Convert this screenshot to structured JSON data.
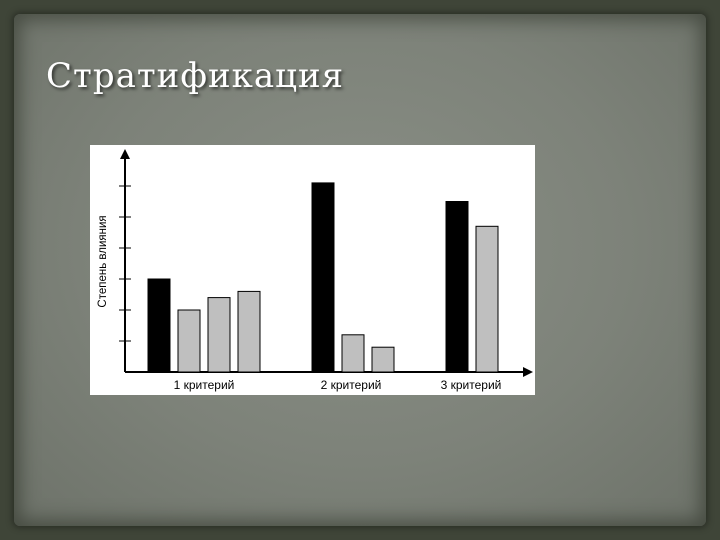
{
  "slide": {
    "title": "Стратификация"
  },
  "chart_data": {
    "type": "bar",
    "ylabel": "Степень влияния",
    "xlabel": "",
    "ylim": [
      0,
      7
    ],
    "yticks": [
      1,
      2,
      3,
      4,
      5,
      6
    ],
    "groups": [
      {
        "label": "1 критерий",
        "values": [
          3.0,
          2.0,
          2.4,
          2.6
        ]
      },
      {
        "label": "2 критерий",
        "values": [
          6.1,
          1.2,
          0.8
        ]
      },
      {
        "label": "3 критерий",
        "values": [
          5.5,
          4.7
        ]
      }
    ],
    "bar_colors": {
      "primary": "#000000",
      "secondary": "#bfbfbf"
    }
  }
}
